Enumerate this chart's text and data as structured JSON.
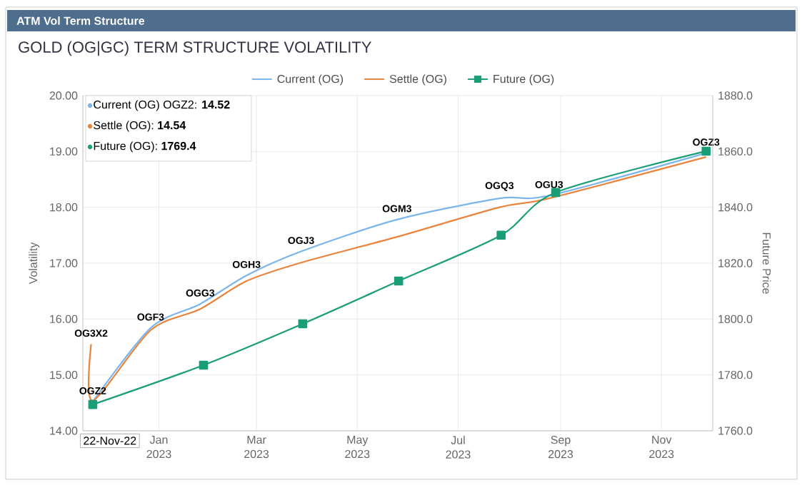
{
  "chart_data": {
    "type": "line",
    "title": "ATM Vol Term Structure",
    "subtitle": "GOLD (OG|GC) TERM STRUCTURE VOLATILITY",
    "ylabel": "Volatility",
    "y2label": "Future Price",
    "xlim": [
      "2022-11-16",
      "2023-12-02"
    ],
    "xticks": [
      {
        "value": "2023-01-01",
        "label": "Jan 2023"
      },
      {
        "value": "2023-03-01",
        "label": "Mar 2023"
      },
      {
        "value": "2023-05-01",
        "label": "May 2023"
      },
      {
        "value": "2023-07-01",
        "label": "Jul 2023"
      },
      {
        "value": "2023-09-01",
        "label": "Sep 2023"
      },
      {
        "value": "2023-11-01",
        "label": "Nov 2023"
      }
    ],
    "ylim": [
      14,
      20
    ],
    "yticks": [
      {
        "value": 14,
        "label": "14.00"
      },
      {
        "value": 15,
        "label": "15.00"
      },
      {
        "value": 16,
        "label": "16.00"
      },
      {
        "value": 17,
        "label": "17.00"
      },
      {
        "value": 18,
        "label": "18.00"
      },
      {
        "value": 19,
        "label": "19.00"
      },
      {
        "value": 20,
        "label": "20.00"
      }
    ],
    "y2lim": [
      1760,
      1880
    ],
    "y2ticks": [
      {
        "value": 1760,
        "label": "1760.0"
      },
      {
        "value": 1780,
        "label": "1780.0"
      },
      {
        "value": 1800,
        "label": "1800.0"
      },
      {
        "value": 1820,
        "label": "1820.0"
      },
      {
        "value": 1840,
        "label": "1840.0"
      },
      {
        "value": 1860,
        "label": "1860.0"
      },
      {
        "value": 1880,
        "label": "1880.0"
      }
    ],
    "grid": true,
    "legend": "top",
    "series": [
      {
        "name": "Current (OG)",
        "color": "#7cb5ec",
        "marker": "none",
        "x": [
          "2022-11-22",
          "2022-12-27",
          "2023-01-26",
          "2023-02-23",
          "2023-03-28",
          "2023-05-25",
          "2023-07-26",
          "2023-08-25",
          "2023-11-28"
        ],
        "values": [
          14.52,
          15.84,
          16.27,
          16.78,
          17.21,
          17.78,
          18.16,
          18.21,
          18.97
        ]
      },
      {
        "name": "Settle (OG)",
        "color": "#e8843c",
        "marker": "none",
        "x": [
          "2022-11-21",
          "2022-11-22",
          "2022-12-27",
          "2023-01-26",
          "2023-02-23",
          "2023-03-28",
          "2023-05-25",
          "2023-07-26",
          "2023-08-25",
          "2023-11-28"
        ],
        "values": [
          15.55,
          14.54,
          15.8,
          16.18,
          16.68,
          17.01,
          17.47,
          18.0,
          18.16,
          18.9
        ]
      },
      {
        "name": "Future (OG)",
        "color": "#1a9e77",
        "marker": "square",
        "axis": "y2",
        "x": [
          "2022-11-22",
          "2023-01-28",
          "2023-03-29",
          "2023-05-26",
          "2023-07-27",
          "2023-08-29",
          "2023-11-28"
        ],
        "values": [
          1769.4,
          1783.5,
          1798.3,
          1813.6,
          1830.0,
          1845.3,
          1860.1
        ]
      }
    ],
    "annotations": [
      "Current (OG) OGZ2: **14.52**",
      "Settle (OG): **14.54**",
      "Future (OG): **1769.4**",
      "22-Nov-22",
      {
        "text": "OGZ2",
        "x": "2022-11-22",
        "y": 14.52
      },
      {
        "text": "OG3X2",
        "x": "2022-11-21",
        "y": 15.55
      },
      {
        "text": "OGF3",
        "x": "2022-12-27",
        "y": 15.84
      },
      {
        "text": "OGG3",
        "x": "2023-01-26",
        "y": 16.27
      },
      {
        "text": "OGH3",
        "x": "2023-02-23",
        "y": 16.78
      },
      {
        "text": "OGJ3",
        "x": "2023-03-28",
        "y": 17.21
      },
      {
        "text": "OGM3",
        "x": "2023-05-25",
        "y": 17.78
      },
      {
        "text": "OGQ3",
        "x": "2023-07-26",
        "y": 18.16
      },
      {
        "text": "OGU3",
        "x": "2023-08-25",
        "y": 18.21
      },
      {
        "text": "OGZ3",
        "x": "2023-11-28",
        "y": 18.97
      }
    ]
  }
}
